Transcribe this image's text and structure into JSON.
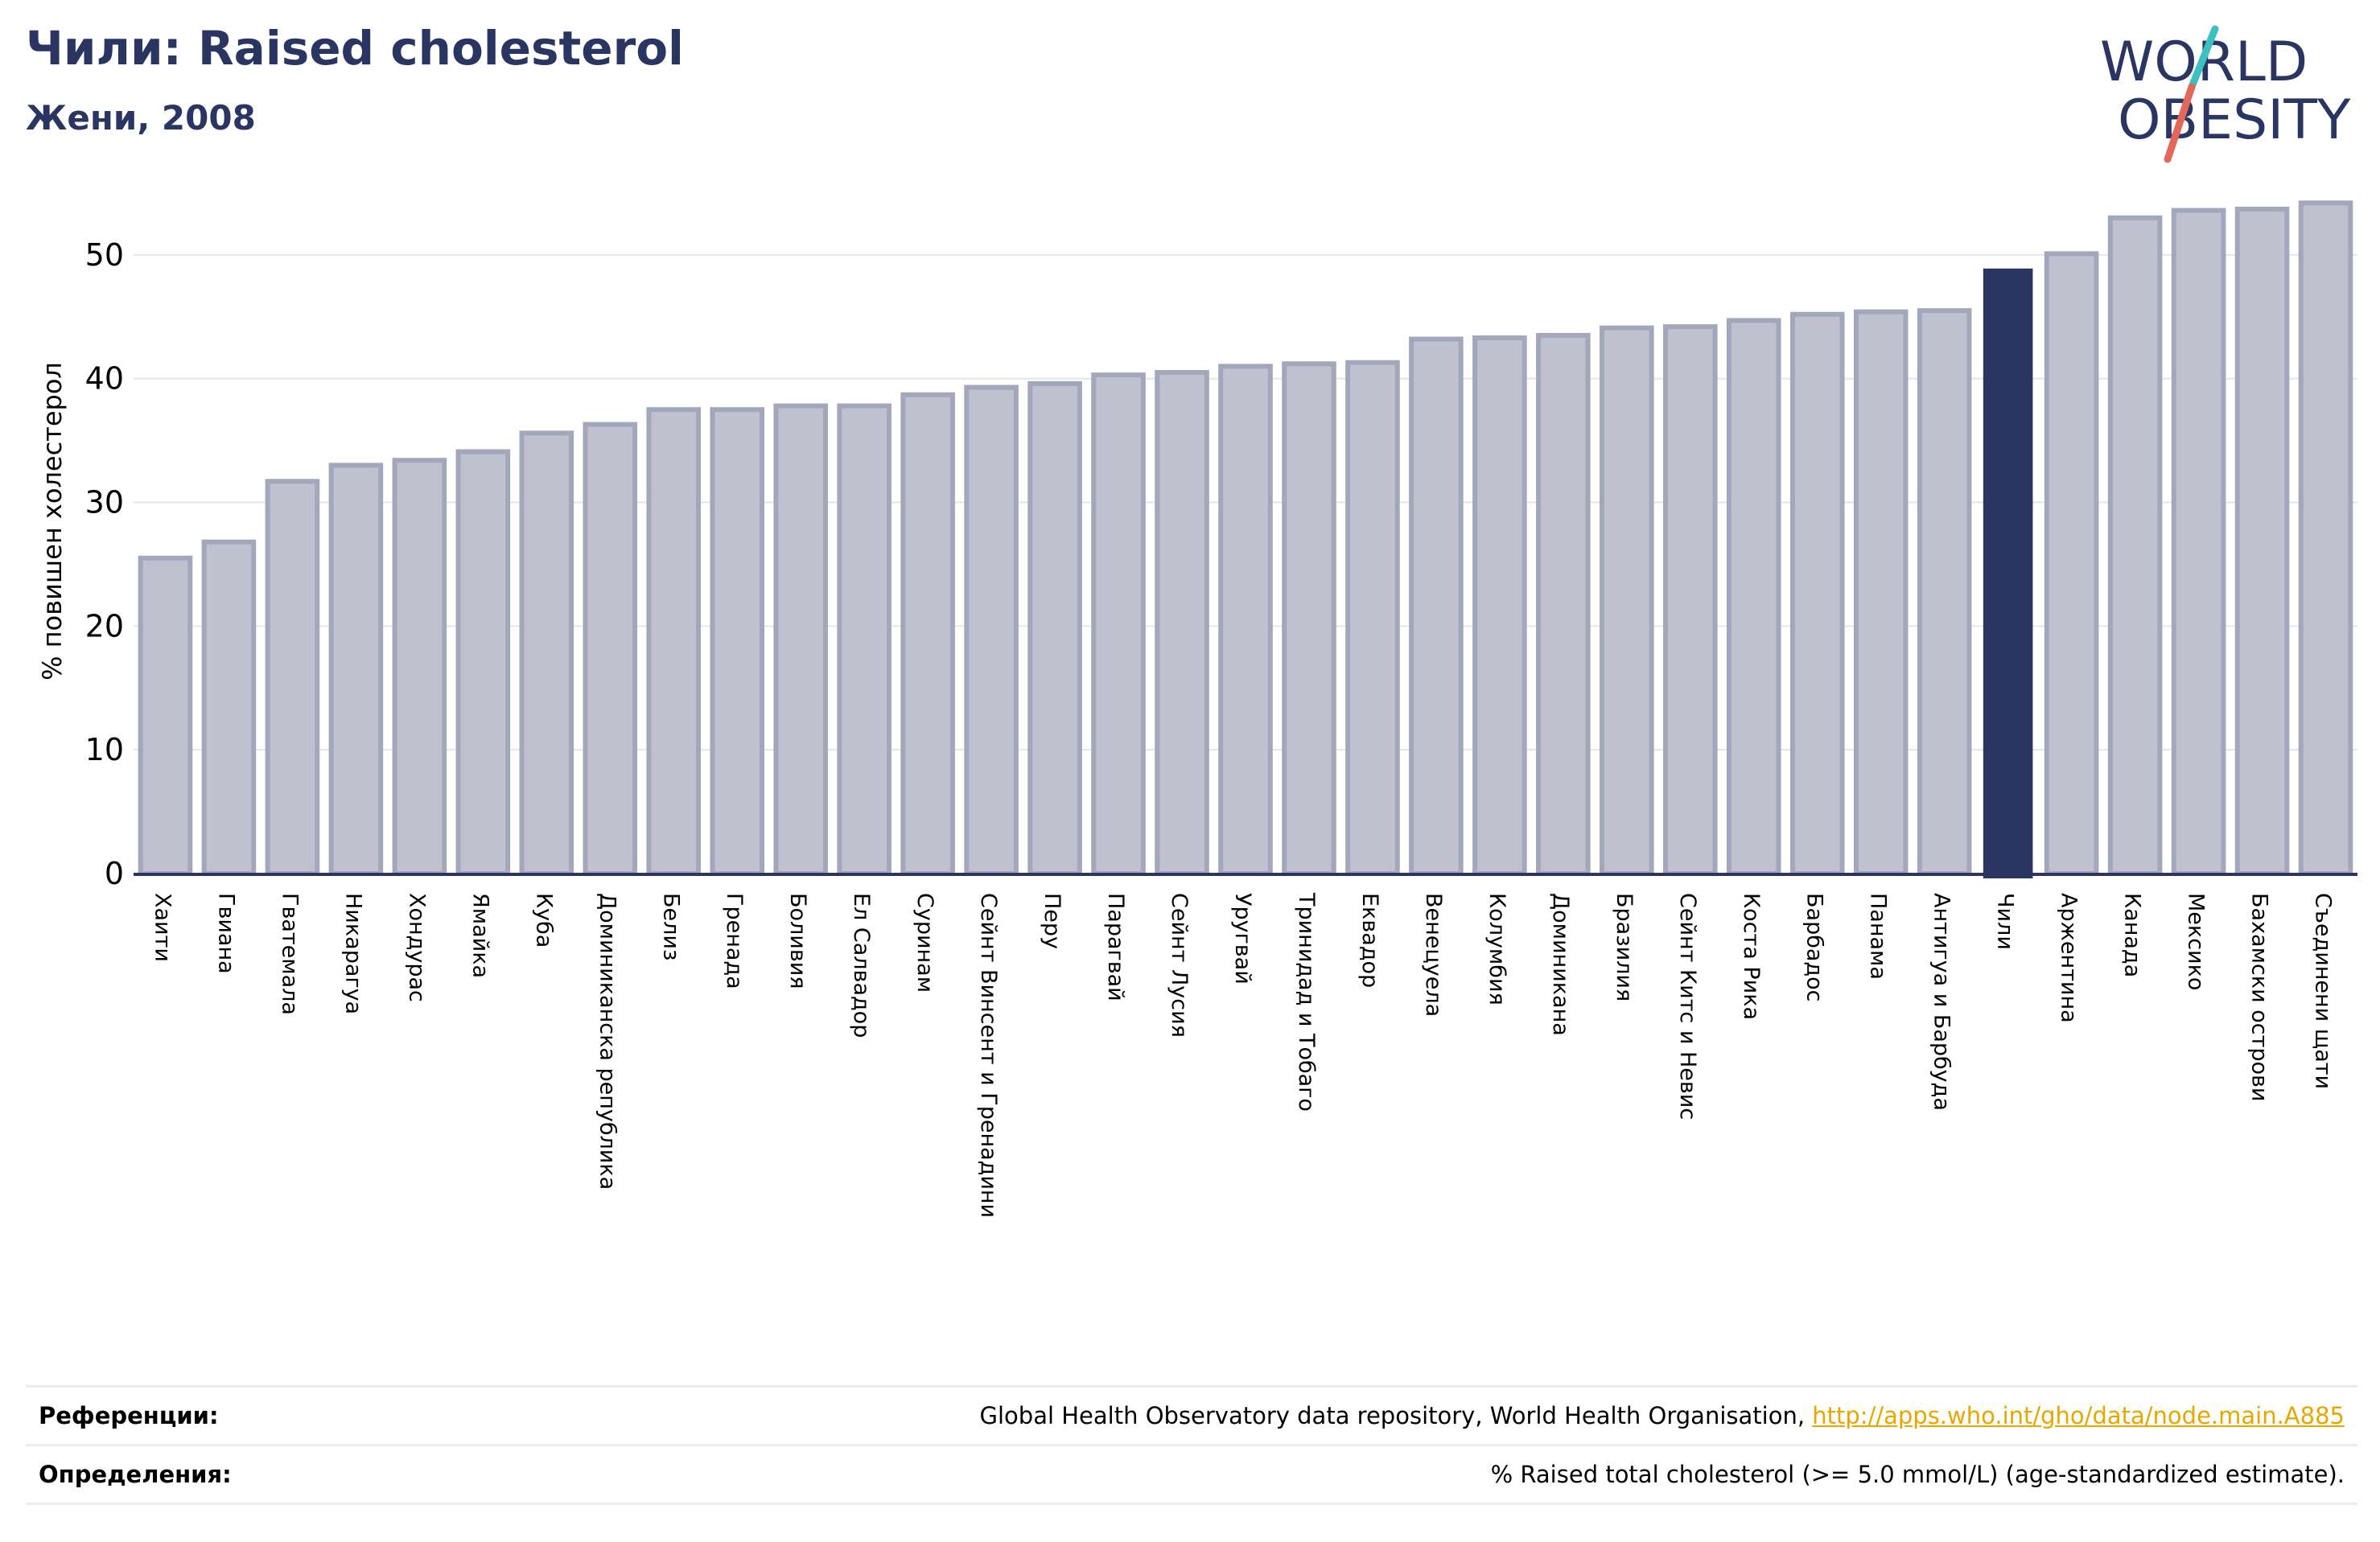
{
  "header": {
    "title": "Чили: Raised cholesterol",
    "subtitle": "Жени, 2008"
  },
  "logo": {
    "line1": "WORLD",
    "line2": "OBESITY",
    "slash_colors": [
      "#3cc0c0",
      "#e4685a"
    ],
    "text_color": "#2a3561"
  },
  "chart_data": {
    "type": "bar",
    "ylabel": "% повишен холестерол",
    "ylim": [
      0,
      55
    ],
    "yticks": [
      0,
      10,
      20,
      30,
      40,
      50
    ],
    "grid": true,
    "highlight": "Чили",
    "colors": {
      "bar": "#bfc1ce",
      "bar_border": "#a3a7bc",
      "highlight": "#2a3561",
      "grid": "#e6e6e6",
      "axis": "#2a3561"
    },
    "categories": [
      "Хаити",
      "Гвиана",
      "Гватемала",
      "Никарагуа",
      "Хондурас",
      "Ямайка",
      "Куба",
      "Доминиканска република",
      "Белиз",
      "Гренада",
      "Боливия",
      "Ел Салвадор",
      "Суринам",
      "Сейнт Винсент и Гренадини",
      "Перу",
      "Парагвай",
      "Сейнт Лусия",
      "Уругвай",
      "Тринидад и Тобаго",
      "Еквадор",
      "Венецуела",
      "Колумбия",
      "Доминикана",
      "Бразилия",
      "Сейнт Китс и Невис",
      "Коста Рика",
      "Барбадос",
      "Панама",
      "Антигуа и Барбуда",
      "Чили",
      "Аржентина",
      "Канада",
      "Мексико",
      "Бахамски острови",
      "Съединени щати"
    ],
    "values": [
      25.5,
      26.8,
      31.7,
      33.0,
      33.4,
      34.1,
      35.6,
      36.3,
      37.5,
      37.5,
      37.8,
      37.8,
      38.7,
      39.3,
      39.6,
      40.3,
      40.5,
      41.0,
      41.2,
      41.3,
      43.2,
      43.3,
      43.5,
      44.1,
      44.2,
      44.7,
      45.2,
      45.4,
      45.5,
      48.9,
      50.1,
      53.0,
      53.6,
      53.7,
      54.2
    ]
  },
  "references": {
    "sources_label": "Референции:",
    "sources_text": "Global Health Observatory data repository, World Health Organisation,",
    "sources_link": "http://apps.who.int/gho/data/node.main.A885",
    "definitions_label": "Определения:",
    "definitions_text": "% Raised total cholesterol (>= 5.0 mmol/L) (age-standardized estimate)."
  }
}
